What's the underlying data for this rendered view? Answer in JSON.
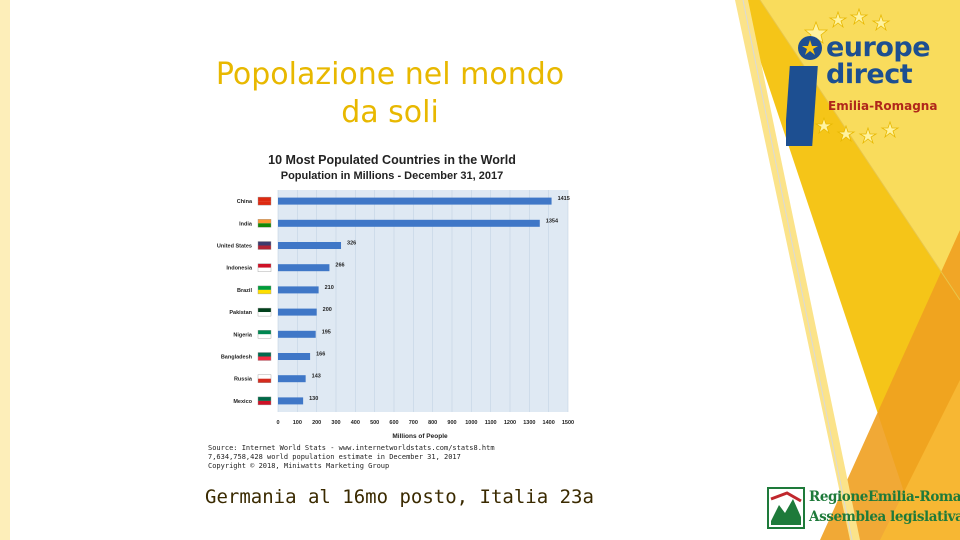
{
  "slide": {
    "title_line1": "Popolazione nel mondo",
    "title_line2": "da soli",
    "caption": "Germania al 16mo posto, Italia 23a"
  },
  "logo": {
    "line1": "europe",
    "line2": "direct",
    "line3": "Emilia-Romagna"
  },
  "region_logo": {
    "line1": "RegioneEmilia-Romagna",
    "line2": "Assemblea legislativa"
  },
  "source": {
    "line1": "Source: Internet World Stats - www.internetworldstats.com/stats8.htm",
    "line2": "7,634,758,428 world population estimate in December 31, 2017",
    "line3": "Copyright © 2018, Miniwatts Marketing Group"
  },
  "colors": {
    "title": "#e8b800",
    "bar": "#3f77c7",
    "yellow_main": "#f5c518",
    "yellow_light": "#f9dc5c",
    "orange": "#f0a020"
  },
  "chart_data": {
    "type": "bar",
    "orientation": "horizontal",
    "title": "10 Most Populated Countries in the World",
    "subtitle": "Population in Millions  -  December 31, 2017",
    "xlabel": "Millions of People",
    "ylabel": "",
    "xlim": [
      0,
      1500
    ],
    "xticks": [
      0,
      100,
      200,
      300,
      400,
      500,
      600,
      700,
      800,
      900,
      1000,
      1100,
      1200,
      1300,
      1400,
      1500
    ],
    "grid": true,
    "categories": [
      "China",
      "India",
      "United States",
      "Indonesia",
      "Brazil",
      "Pakistan",
      "Nigeria",
      "Bangladesh",
      "Russia",
      "Mexico"
    ],
    "values": [
      1415,
      1354,
      326,
      266,
      210,
      200,
      195,
      166,
      143,
      130
    ],
    "flags": [
      "china-flag-icon",
      "india-flag-icon",
      "usa-flag-icon",
      "indonesia-flag-icon",
      "brazil-flag-icon",
      "pakistan-flag-icon",
      "nigeria-flag-icon",
      "bangladesh-flag-icon",
      "russia-flag-icon",
      "mexico-flag-icon"
    ]
  }
}
